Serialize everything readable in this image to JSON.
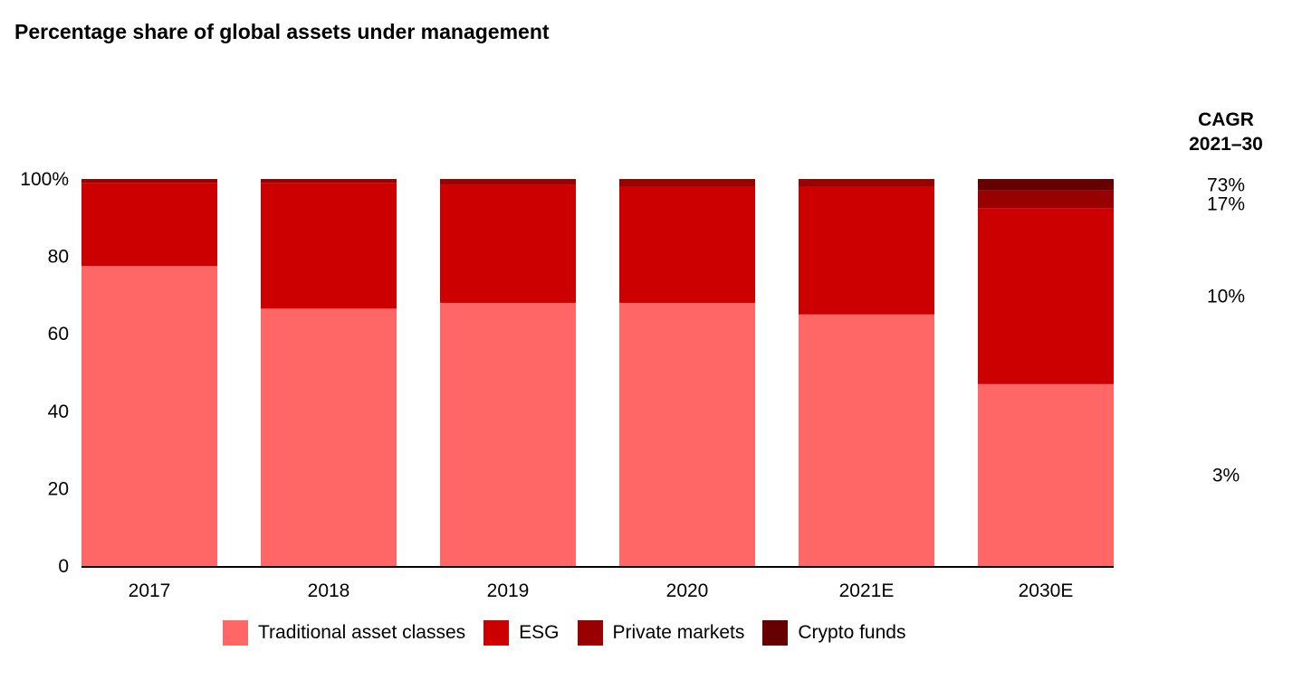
{
  "chart_data": {
    "type": "bar",
    "stacked": true,
    "title": "Percentage share of global assets under management",
    "categories": [
      "2017",
      "2018",
      "2019",
      "2020",
      "2021E",
      "2030E"
    ],
    "series": [
      {
        "name": "Traditional asset classes",
        "color": "#ff6666",
        "values": [
          77.5,
          66.5,
          68,
          68,
          65,
          47
        ]
      },
      {
        "name": "ESG",
        "color": "#cc0000",
        "values": [
          21.5,
          32.5,
          30.5,
          30,
          33,
          45.5
        ]
      },
      {
        "name": "Private markets",
        "color": "#990000",
        "values": [
          1,
          1,
          1.5,
          2,
          2,
          4.5
        ]
      },
      {
        "name": "Crypto funds",
        "color": "#660000",
        "values": [
          0,
          0,
          0,
          0,
          0,
          3
        ]
      }
    ],
    "y_ticks": [
      "0",
      "20",
      "40",
      "60",
      "80",
      "100%"
    ],
    "ylim": [
      0,
      100
    ],
    "legend_position": "bottom",
    "cagr": {
      "header_line1": "CAGR",
      "header_line2": "2021–30",
      "labels": [
        {
          "series": "Traditional asset classes",
          "text": "3%"
        },
        {
          "series": "ESG",
          "text": "10%"
        },
        {
          "series": "Private markets",
          "text": "17%"
        },
        {
          "series": "Crypto funds",
          "text": "73%"
        }
      ]
    }
  }
}
